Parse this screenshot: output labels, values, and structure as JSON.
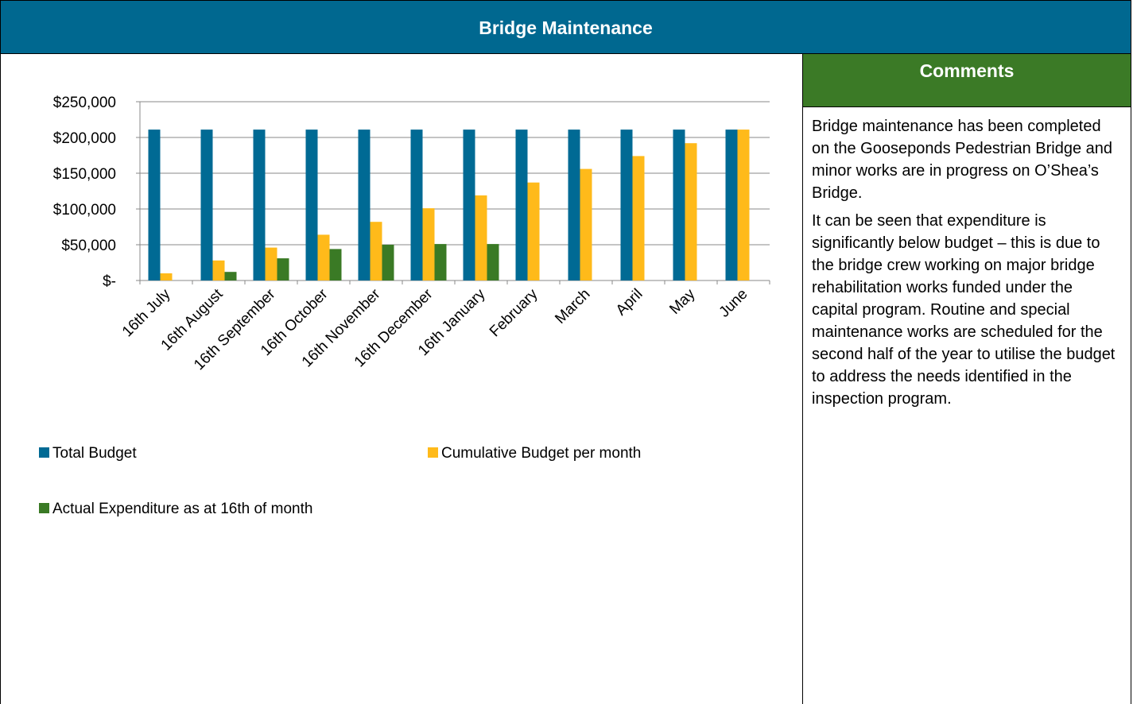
{
  "header": {
    "title": "Bridge Maintenance"
  },
  "chart_data": {
    "type": "bar",
    "categories": [
      "16th July",
      "16th August",
      "16th September",
      "16th October",
      "16th November",
      "16th December",
      "16th January",
      "February",
      "March",
      "April",
      "May",
      "June"
    ],
    "series": [
      {
        "name": "Total Budget",
        "color": "#006a94",
        "values": [
          211000,
          211000,
          211000,
          211000,
          211000,
          211000,
          211000,
          211000,
          211000,
          211000,
          211000,
          211000
        ]
      },
      {
        "name": "Cumulative Budget per month",
        "color": "#ffba1a",
        "values": [
          10000,
          28000,
          46000,
          64000,
          82000,
          101000,
          119000,
          137000,
          156000,
          174000,
          192000,
          211000
        ]
      },
      {
        "name": "Actual Expenditure as at 16th of month",
        "color": "#3a7a25",
        "values": [
          null,
          12000,
          31000,
          44000,
          50000,
          51000,
          51000,
          null,
          null,
          null,
          null,
          null
        ]
      }
    ],
    "ylim": [
      0,
      250000
    ],
    "yticks": [
      {
        "value": 0,
        "label": "$-"
      },
      {
        "value": 50000,
        "label": "$50,000"
      },
      {
        "value": 100000,
        "label": "$100,000"
      },
      {
        "value": 150000,
        "label": "$150,000"
      },
      {
        "value": 200000,
        "label": "$200,000"
      },
      {
        "value": 250000,
        "label": "$250,000"
      }
    ],
    "grid": true,
    "legend": "bottom"
  },
  "comments": {
    "title": "Comments",
    "paragraphs": [
      "Bridge maintenance has been completed on the Gooseponds Pedestrian Bridge and minor works are in progress on O’Shea’s Bridge.",
      "It can be seen that expenditure is significantly below budget – this is due to the bridge crew working on major bridge rehabilitation works funded under the capital program. Routine and special maintenance works are scheduled for the second half of the year to utilise the budget to address the needs identified in the inspection program."
    ]
  }
}
